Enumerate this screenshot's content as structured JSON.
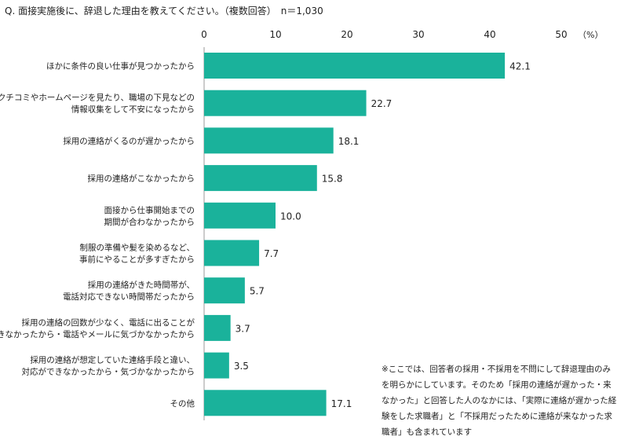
{
  "question": "Q. 面接実施後に、辞退した理由を教えてください。（複数回答）　n＝1,030",
  "chart_data": {
    "type": "bar",
    "orientation": "horizontal",
    "xlim": [
      0,
      50
    ],
    "xticks": [
      0,
      10,
      20,
      30,
      40,
      50
    ],
    "unit_label": "（%）",
    "bar_color": "#1ab29b",
    "grid": false,
    "categories": [
      [
        "ほかに条件の良い仕事が見つかったから"
      ],
      [
        "クチコミやホームページを見たり、職場の下見などの",
        "情報収集をして不安になったから"
      ],
      [
        "採用の連絡がくるのが遅かったから"
      ],
      [
        "採用の連絡がこなかったから"
      ],
      [
        "面接から仕事開始までの",
        "期間が合わなかったから"
      ],
      [
        "制服の準備や髪を染めるなど、",
        "事前にやることが多すぎたから"
      ],
      [
        "採用の連絡がきた時間帯が、",
        "電話対応できない時間帯だったから"
      ],
      [
        "採用の連絡の回数が少なく、電話に出ることが",
        "できなかったから・電話やメールに気づかなかったから"
      ],
      [
        "採用の連絡が想定していた連絡手段と違い、",
        "対応ができなかったから・気づかなかったから"
      ],
      [
        "その他"
      ]
    ],
    "values": [
      42.1,
      22.7,
      18.1,
      15.8,
      10.0,
      7.7,
      5.7,
      3.7,
      3.5,
      17.1
    ],
    "value_labels": [
      "42.1",
      "22.7",
      "18.1",
      "15.8",
      "10.0",
      "7.7",
      "5.7",
      "3.7",
      "3.5",
      "17.1"
    ],
    "note": "※ここでは、回答者の採用・不採用を不問にして辞退理由のみを明らかにしています。そのため「採用の連絡が遅かった・来なかった」と回答した人のなかには、「実際に連絡が遅かった経験をした求職者」と「不採用だったために連絡が来なかった求職者」も含まれています"
  }
}
